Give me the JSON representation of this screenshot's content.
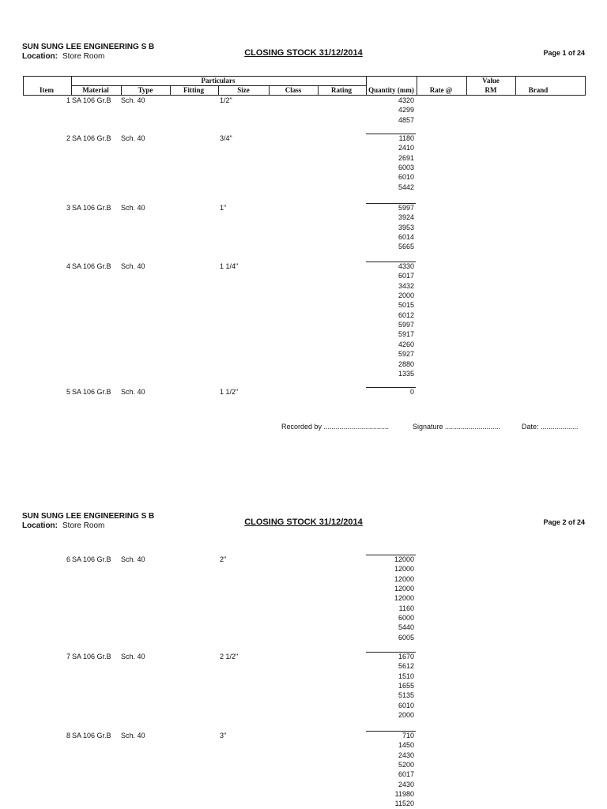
{
  "pages": [
    {
      "company": "SUN SUNG LEE ENGINEERING S B",
      "location_label": "Location:",
      "location": "Store Room",
      "title": "CLOSING STOCK 31/12/2014",
      "page_no": "Page 1 of 24",
      "table_header": {
        "item": "Item",
        "particulars": "Particulars",
        "material": "Material",
        "type": "Type",
        "fitting": "Fitting",
        "size": "Size",
        "class": "Class",
        "rating": "Rating",
        "quantity": "Quantity (mm)",
        "rate": "Rate @",
        "value": [
          "Value",
          "RM"
        ],
        "brand": "Brand"
      },
      "items": [
        {
          "no": 1,
          "material": "SA 106 Gr.B",
          "type": "Sch. 40",
          "size": "1/2\"",
          "quantities": [
            4320,
            4299,
            4857
          ]
        },
        {
          "no": 2,
          "material": "SA 106 Gr.B",
          "type": "Sch. 40",
          "size": "3/4\"",
          "quantities": [
            1180,
            2410,
            2691,
            6003,
            6010,
            5442
          ]
        },
        {
          "no": 3,
          "material": "SA 106 Gr.B",
          "type": "Sch. 40",
          "size": "1\"",
          "quantities": [
            5997,
            3924,
            3953,
            6014,
            5665
          ]
        },
        {
          "no": 4,
          "material": "SA 106 Gr.B",
          "type": "Sch. 40",
          "size": "1 1/4\"",
          "quantities": [
            4330,
            6017,
            3432,
            2000,
            5015,
            6012,
            5997,
            5917,
            4260,
            5927,
            2880,
            1335
          ]
        },
        {
          "no": 5,
          "material": "SA 106 Gr.B",
          "type": "Sch. 40",
          "size": "1 1/2\"",
          "quantities": [
            0
          ]
        }
      ],
      "footer": {
        "recorded_by": "Recorded by .................................",
        "signature": "Signature ............................",
        "date": "Date: ..................."
      }
    },
    {
      "company": "SUN SUNG LEE ENGINEERING S B",
      "location_label": "Location:",
      "location": "Store Room",
      "title": "CLOSING STOCK 31/12/2014",
      "page_no": "Page 2 of 24",
      "items": [
        {
          "no": 6,
          "material": "SA 106 Gr.B",
          "type": "Sch. 40",
          "size": "2\"",
          "quantities": [
            12000,
            12000,
            12000,
            12000,
            12000,
            1160,
            6000,
            5440,
            6005
          ]
        },
        {
          "no": 7,
          "material": "SA 106 Gr.B",
          "type": "Sch. 40",
          "size": "2 1/2\"",
          "quantities": [
            1670,
            5612,
            1510,
            1655,
            5135,
            6010,
            2000
          ]
        },
        {
          "no": 8,
          "material": "SA 106 Gr.B",
          "type": "Sch. 40",
          "size": "3\"",
          "quantities": [
            710,
            1450,
            2430,
            5200,
            6017,
            2430,
            11980,
            11520
          ]
        }
      ]
    }
  ]
}
